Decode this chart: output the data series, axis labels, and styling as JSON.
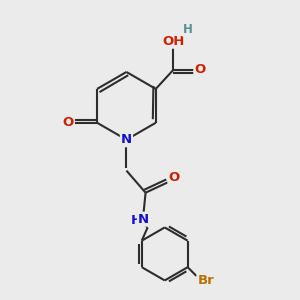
{
  "bg_color": "#ebebeb",
  "bond_color": "#2d2d2d",
  "bond_width": 1.5,
  "doff": 0.055,
  "atom_colors": {
    "C": "#2d2d2d",
    "H": "#5a9090",
    "O": "#cc2200",
    "N": "#1111cc",
    "Br": "#b87000"
  },
  "fs": 9.5,
  "fs_small": 8.5
}
